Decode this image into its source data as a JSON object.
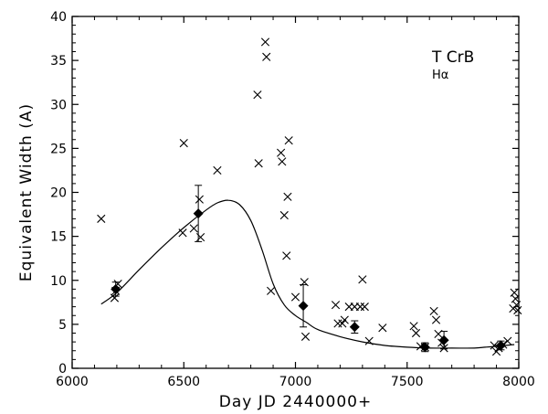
{
  "chart_data": {
    "type": "scatter",
    "title": "",
    "xlabel": "Day JD 2440000+",
    "ylabel": "Equivalent Width (A)",
    "xlim": [
      6000,
      8000
    ],
    "ylim": [
      0,
      40
    ],
    "xticks": [
      6000,
      6500,
      7000,
      7500,
      8000
    ],
    "yticks": [
      0,
      5,
      10,
      15,
      20,
      25,
      30,
      35,
      40
    ],
    "grid": false,
    "annotations": [
      "T CrB",
      "Hα"
    ],
    "series": [
      {
        "marker": "x",
        "points": [
          [
            6130,
            17.0
          ],
          [
            6190,
            8.0
          ],
          [
            6195,
            8.8
          ],
          [
            6205,
            9.6
          ],
          [
            6495,
            15.4
          ],
          [
            6500,
            25.6
          ],
          [
            6545,
            15.9
          ],
          [
            6570,
            19.2
          ],
          [
            6575,
            14.9
          ],
          [
            6650,
            22.5
          ],
          [
            6830,
            31.1
          ],
          [
            6835,
            23.3
          ],
          [
            6865,
            37.1
          ],
          [
            6870,
            35.4
          ],
          [
            6890,
            8.8
          ],
          [
            6935,
            24.5
          ],
          [
            6940,
            23.5
          ],
          [
            6950,
            17.4
          ],
          [
            6960,
            12.8
          ],
          [
            6965,
            19.5
          ],
          [
            6970,
            25.9
          ],
          [
            7000,
            8.1
          ],
          [
            7040,
            9.8
          ],
          [
            7045,
            3.6
          ],
          [
            7180,
            7.2
          ],
          [
            7190,
            5.1
          ],
          [
            7210,
            5.1
          ],
          [
            7220,
            5.5
          ],
          [
            7240,
            7.0
          ],
          [
            7265,
            7.0
          ],
          [
            7290,
            7.0
          ],
          [
            7300,
            10.1
          ],
          [
            7310,
            7.0
          ],
          [
            7330,
            3.1
          ],
          [
            7390,
            4.6
          ],
          [
            7530,
            4.8
          ],
          [
            7540,
            4.0
          ],
          [
            7560,
            2.5
          ],
          [
            7580,
            2.4
          ],
          [
            7620,
            6.5
          ],
          [
            7630,
            5.5
          ],
          [
            7640,
            3.9
          ],
          [
            7655,
            2.9
          ],
          [
            7665,
            2.3
          ],
          [
            7890,
            2.6
          ],
          [
            7900,
            1.9
          ],
          [
            7910,
            2.3
          ],
          [
            7930,
            2.7
          ],
          [
            7950,
            3.1
          ],
          [
            7975,
            6.8
          ],
          [
            7980,
            8.6
          ],
          [
            7985,
            7.9
          ],
          [
            7990,
            7.2
          ],
          [
            7995,
            6.6
          ]
        ]
      },
      {
        "marker": "diamond",
        "points": [
          [
            6195,
            9.0
          ],
          [
            6565,
            17.6
          ],
          [
            7035,
            7.1
          ],
          [
            7265,
            4.7
          ],
          [
            7580,
            2.4
          ],
          [
            7665,
            3.2
          ],
          [
            7920,
            2.6
          ]
        ],
        "errors": [
          0.8,
          3.2,
          2.4,
          0.7,
          0.5,
          1.0,
          0.5
        ]
      },
      {
        "marker": "none",
        "line": "smooth",
        "points": [
          [
            6130,
            7.3
          ],
          [
            6200,
            8.6
          ],
          [
            6300,
            11.2
          ],
          [
            6400,
            13.7
          ],
          [
            6500,
            16.0
          ],
          [
            6600,
            18.0
          ],
          [
            6650,
            18.8
          ],
          [
            6700,
            19.1
          ],
          [
            6750,
            18.6
          ],
          [
            6800,
            16.8
          ],
          [
            6850,
            13.5
          ],
          [
            6900,
            9.6
          ],
          [
            6950,
            7.2
          ],
          [
            7000,
            6.0
          ],
          [
            7050,
            5.2
          ],
          [
            7100,
            4.4
          ],
          [
            7200,
            3.6
          ],
          [
            7300,
            3.0
          ],
          [
            7400,
            2.6
          ],
          [
            7500,
            2.4
          ],
          [
            7600,
            2.3
          ],
          [
            7700,
            2.3
          ],
          [
            7800,
            2.3
          ],
          [
            7850,
            2.4
          ],
          [
            7900,
            2.5
          ],
          [
            7980,
            2.7
          ]
        ]
      }
    ]
  }
}
